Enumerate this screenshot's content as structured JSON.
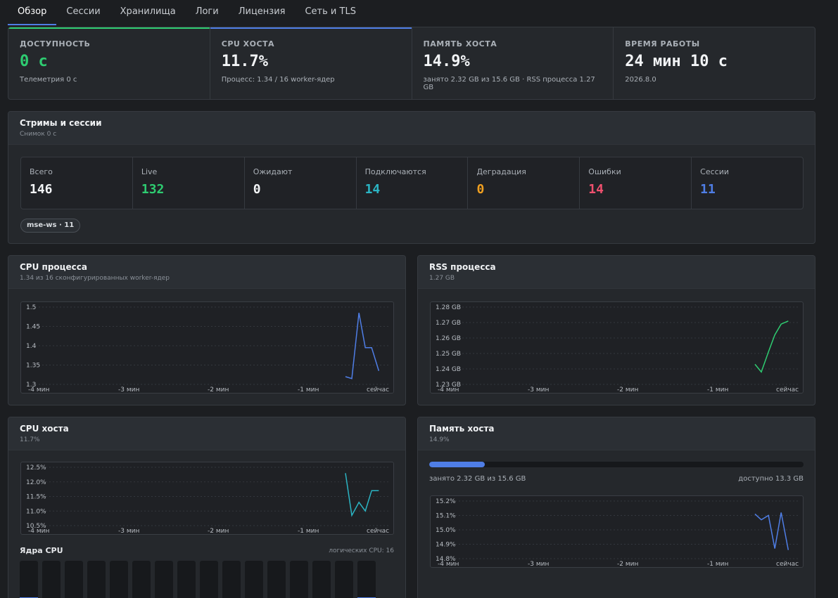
{
  "tabs": [
    "Обзор",
    "Сессии",
    "Хранилища",
    "Логи",
    "Лицензия",
    "Сеть и TLS"
  ],
  "stats": [
    {
      "label": "ДОСТУПНОСТЬ",
      "value": "0 с",
      "sub": "Телеметрия 0 с",
      "color": "#2ecc71",
      "accent": "#2ecc71"
    },
    {
      "label": "CPU ХОСТА",
      "value": "11.7%",
      "sub": "Процесс: 1.34 / 16 worker-ядер",
      "color": "#f2f4f6",
      "accent": "#4f7ee6"
    },
    {
      "label": "ПАМЯТЬ ХОСТА",
      "value": "14.9%",
      "sub": "занято 2.32 GB из 15.6 GB · RSS процесса 1.27 GB",
      "color": "#f2f4f6",
      "accent": ""
    },
    {
      "label": "ВРЕМЯ РАБОТЫ",
      "value": "24 мин 10 с",
      "sub": "2026.8.0",
      "color": "#f2f4f6",
      "accent": ""
    }
  ],
  "streams": {
    "title": "Стримы и сессии",
    "subtitle": "Снимок 0 с",
    "counters": [
      {
        "label": "Всего",
        "value": "146",
        "color": "#f2f4f6"
      },
      {
        "label": "Live",
        "value": "132",
        "color": "#2ecc71"
      },
      {
        "label": "Ожидают",
        "value": "0",
        "color": "#f2f4f6"
      },
      {
        "label": "Подключаются",
        "value": "14",
        "color": "#2bb5c4"
      },
      {
        "label": "Деградация",
        "value": "0",
        "color": "#f0a020"
      },
      {
        "label": "Ошибки",
        "value": "14",
        "color": "#f0506e"
      },
      {
        "label": "Сессии",
        "value": "11",
        "color": "#4f7ee6"
      }
    ],
    "pill": "mse-ws · 11"
  },
  "cpu_process": {
    "title": "CPU процесса",
    "subtitle": "1.34 из 16 сконфигурированных worker-ядер"
  },
  "rss_process": {
    "title": "RSS процесса",
    "subtitle": "1.27 GB"
  },
  "cpu_host": {
    "title": "CPU хоста",
    "subtitle": "11.7%",
    "cores_title": "Ядра CPU",
    "cores_count": "логических CPU: 16",
    "cores": [
      0.13,
      0.12,
      0.05,
      0.05,
      0.05,
      0.05,
      0.05,
      0.05,
      0.08,
      0.07,
      0.1,
      0.08,
      0.12,
      0.11,
      0.1,
      0.13
    ]
  },
  "mem_host": {
    "title": "Память хоста",
    "subtitle": "14.9%",
    "used_label": "занято 2.32 GB из 15.6 GB",
    "free_label": "доступно 13.3 GB",
    "used_fraction": 0.149
  },
  "chart_data": [
    {
      "type": "line",
      "title": "CPU процесса",
      "color": "#4f7ee6",
      "x_ticks": [
        "-4 мин",
        "-3 мин",
        "-2 мин",
        "-1 мин",
        "сейчас"
      ],
      "y_ticks": [
        "1.5",
        "1.45",
        "1.4",
        "1.35",
        "1.3"
      ],
      "ylim": [
        1.3,
        1.5
      ],
      "x": [
        -0.25,
        -0.17,
        -0.08,
        0.0,
        0.08,
        0.17,
        0.25
      ],
      "y": [
        1.32,
        1.315,
        1.485,
        1.395,
        1.395,
        1.335,
        null
      ]
    },
    {
      "type": "line",
      "title": "RSS процесса",
      "color": "#2ecc71",
      "x_ticks": [
        "-4 мин",
        "-3 мин",
        "-2 мин",
        "-1 мин",
        "сейчас"
      ],
      "y_ticks": [
        "1.28 GB",
        "1.27 GB",
        "1.26 GB",
        "1.25 GB",
        "1.24 GB",
        "1.23 GB"
      ],
      "ylim": [
        1.23,
        1.28
      ],
      "x": [
        -0.25,
        -0.17,
        -0.08,
        0.0,
        0.08,
        0.17
      ],
      "y": [
        1.243,
        1.238,
        1.251,
        1.262,
        1.269,
        1.271
      ]
    },
    {
      "type": "line",
      "title": "CPU хоста",
      "color": "#2bb5c4",
      "x_ticks": [
        "-4 мин",
        "-3 мин",
        "-2 мин",
        "-1 мин",
        "сейчас"
      ],
      "y_ticks": [
        "12.5%",
        "12.0%",
        "11.5%",
        "11.0%",
        "10.5%"
      ],
      "ylim": [
        10.5,
        12.5
      ],
      "x": [
        -0.25,
        -0.17,
        -0.08,
        0.0,
        0.08,
        0.17
      ],
      "y": [
        12.3,
        10.85,
        11.3,
        11.0,
        11.7,
        11.7
      ]
    },
    {
      "type": "line",
      "title": "Память хоста",
      "color": "#4f7ee6",
      "x_ticks": [
        "-4 мин",
        "-3 мин",
        "-2 мин",
        "-1 мин",
        "сейчас"
      ],
      "y_ticks": [
        "15.2%",
        "15.1%",
        "15.0%",
        "14.9%",
        "14.8%"
      ],
      "ylim": [
        14.8,
        15.2
      ],
      "x": [
        -0.25,
        -0.17,
        -0.08,
        0.0,
        0.08,
        0.17
      ],
      "y": [
        15.11,
        15.07,
        15.1,
        14.87,
        15.12,
        14.86
      ]
    }
  ]
}
